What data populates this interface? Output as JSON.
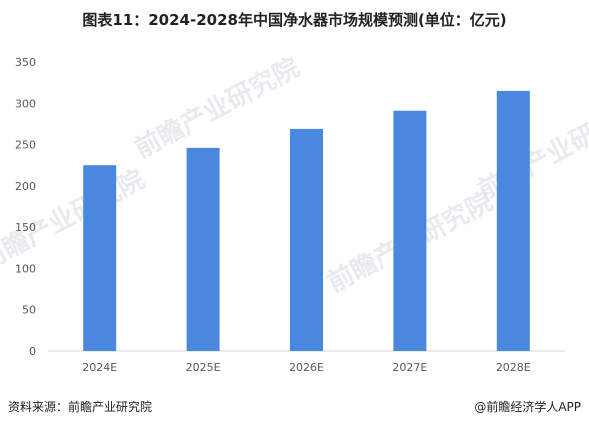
{
  "title": "图表11：2024-2028年中国净水器市场规模预测(单位：亿元)",
  "watermark": "前瞻产业研究院",
  "footer": {
    "source": "资料来源：前瞻产业研究院",
    "credit": "@前瞻经济学人APP"
  },
  "colors": {
    "bar": "#4a88e0",
    "axis_text": "#595959",
    "grid": "#d9d9d9"
  },
  "chart_data": {
    "type": "bar",
    "title": "图表11：2024-2028年中国净水器市场规模预测(单位：亿元)",
    "categories": [
      "2024E",
      "2025E",
      "2026E",
      "2027E",
      "2028E"
    ],
    "values": [
      225,
      246,
      269,
      291,
      315
    ],
    "xlabel": "",
    "ylabel": "",
    "ylim": [
      0,
      350
    ],
    "yticks": [
      0,
      50,
      100,
      150,
      200,
      250,
      300,
      350
    ],
    "grid": false,
    "legend": "none"
  }
}
